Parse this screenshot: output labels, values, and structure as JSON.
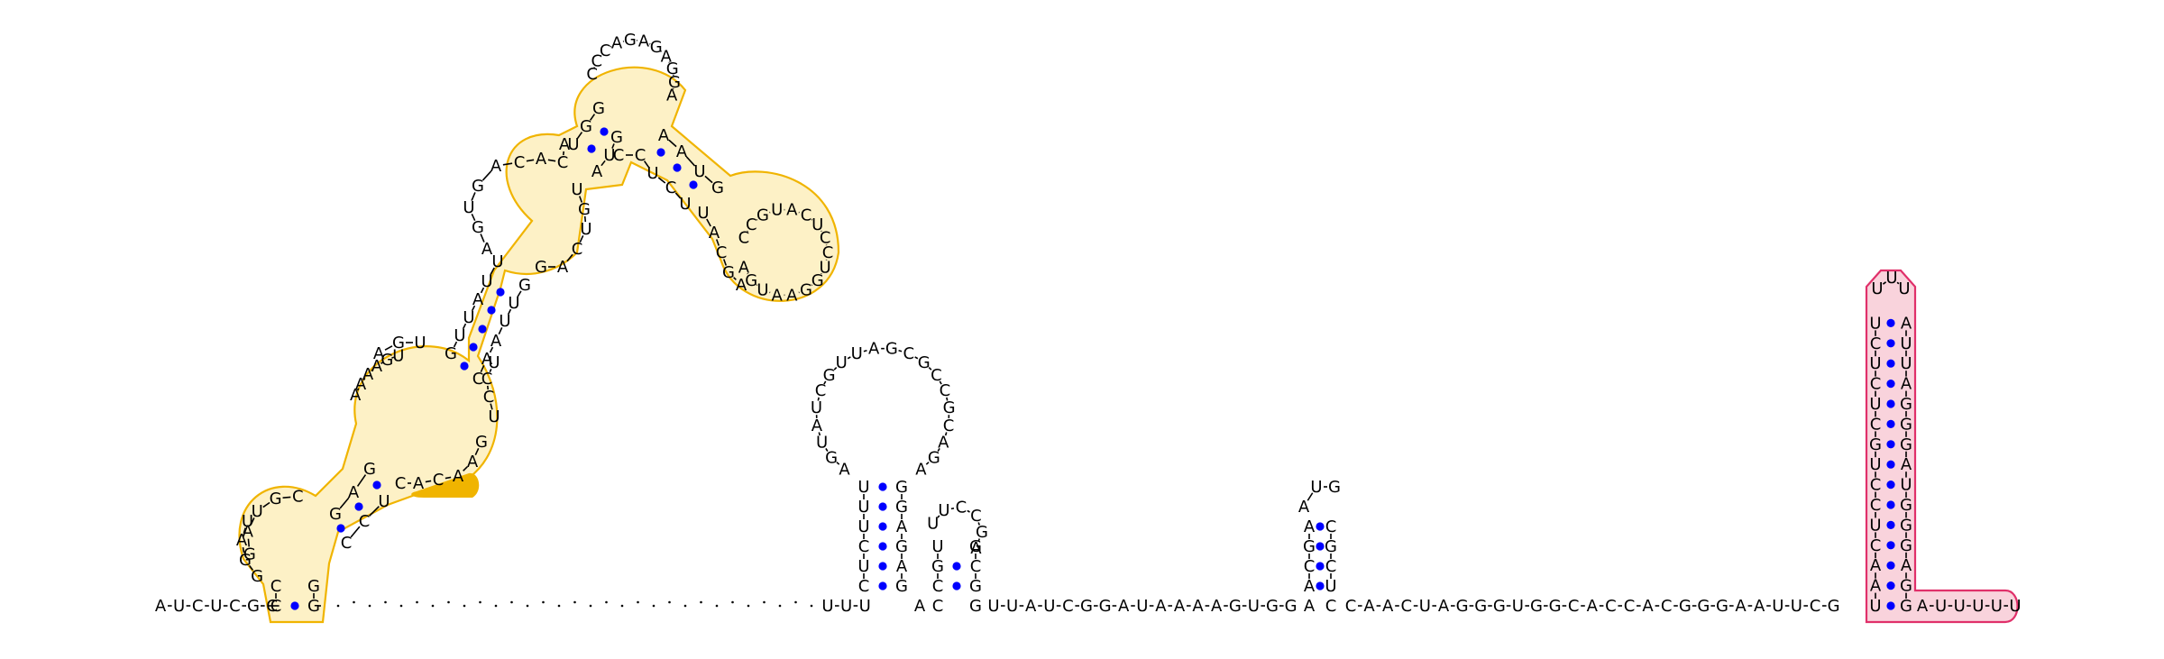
{
  "colors": {
    "background": "#ffffff",
    "base_text": "#000000",
    "backbone": "#000000",
    "pair_dot": "#0000ff",
    "hairpin_outline": "#f0b400",
    "hairpin_fill": "#fdf1c6",
    "hairpin_highlight": "#f0b400",
    "terminator_outline": "#e0306a",
    "terminator_fill": "#f9d3dc"
  },
  "diagram": {
    "type": "rna-secondary-structure",
    "five_prime_flank": "AUCUCGC",
    "unpaired_spacer_dots": 30,
    "linker_after_spacer": "UUU",
    "hairpin1_stem_5": "CUCU",
    "hairpin1_loop": "AGCCGCGAUUGCUAUGAG",
    "hairpin1_stem_3": "GAGG",
    "hairpin2": {
      "stem_5": "CG",
      "loop": "UUCCGA",
      "stem_3": "GC",
      "before": "AA"
    },
    "mid_sequence": "UUAUCGGAUAAAAGUGG",
    "hairpin3": {
      "stem_5": "ACGA",
      "loop": "AUGC",
      "stem_3": "GCCU"
    },
    "pre_terminator": "CAACUAGGGUGGCACCACGGGAAUUCG",
    "terminator_stem_5": "UCUCUCGUCCUCAAU",
    "terminator_loop": "UUU",
    "terminator_stem_3": "AUUAGGGAUGGGAGG",
    "three_prime_tail": "AUUUUU",
    "large_domain_fragments": [
      "GAUGC",
      "AGGACA",
      "UAAAGAGUA",
      "AGUAGUAUU",
      "ACACA",
      "UCCCAGAGAGGA",
      "UCCU",
      "UCUUUACGA",
      "CCGUACUCCUGGAAUG",
      "CAGUGAU",
      "ACAA"
    ]
  }
}
